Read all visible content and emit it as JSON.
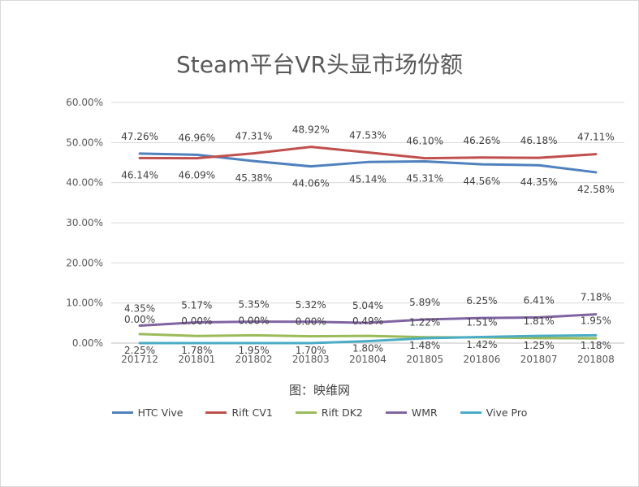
{
  "chart_data": {
    "type": "line",
    "title": "Steam平台VR头显市场份额",
    "source": "图：映维网",
    "categories": [
      "201712",
      "201801",
      "201802",
      "201803",
      "201804",
      "201805",
      "201806",
      "201807",
      "201808"
    ],
    "ylim": [
      0,
      60
    ],
    "yticks": [
      "0.00%",
      "10.00%",
      "20.00%",
      "30.00%",
      "40.00%",
      "50.00%",
      "60.00%"
    ],
    "grid": true,
    "legend_position": "bottom",
    "series": [
      {
        "name": "HTC Vive",
        "color": "#4f81bd",
        "values": [
          47.26,
          46.96,
          45.38,
          44.06,
          45.14,
          45.31,
          44.56,
          44.35,
          42.58
        ],
        "labels": [
          "47.26%",
          "46.96%",
          "45.38%",
          "44.06%",
          "45.14%",
          "45.31%",
          "44.56%",
          "44.35%",
          "42.58%"
        ]
      },
      {
        "name": "Rift CV1",
        "color": "#c0504d",
        "values": [
          46.14,
          46.09,
          47.31,
          48.92,
          47.53,
          46.1,
          46.26,
          46.18,
          47.11
        ],
        "labels": [
          "46.14%",
          "46.09%",
          "47.31%",
          "48.92%",
          "47.53%",
          "46.10%",
          "46.26%",
          "46.18%",
          "47.11%"
        ]
      },
      {
        "name": "Rift DK2",
        "color": "#9bbb59",
        "values": [
          2.25,
          1.78,
          1.95,
          1.7,
          1.8,
          1.48,
          1.42,
          1.25,
          1.18
        ],
        "labels": [
          "2.25%",
          "1.78%",
          "1.95%",
          "1.70%",
          "1.80%",
          "1.48%",
          "1.42%",
          "1.25%",
          "1.18%"
        ]
      },
      {
        "name": "WMR",
        "color": "#8064a2",
        "values": [
          4.35,
          5.17,
          5.35,
          5.32,
          5.04,
          5.89,
          6.25,
          6.41,
          7.18
        ],
        "labels": [
          "4.35%",
          "5.17%",
          "5.35%",
          "5.32%",
          "5.04%",
          "5.89%",
          "6.25%",
          "6.41%",
          "7.18%"
        ]
      },
      {
        "name": "Vive Pro",
        "color": "#4bacc6",
        "values": [
          0.0,
          0.0,
          0.0,
          0.0,
          0.49,
          1.22,
          1.51,
          1.81,
          1.95
        ],
        "labels": [
          "0.00%",
          "0.00%",
          "0.00%",
          "0.00%",
          "0.49%",
          "1.22%",
          "1.51%",
          "1.81%",
          "1.95%"
        ]
      }
    ]
  }
}
